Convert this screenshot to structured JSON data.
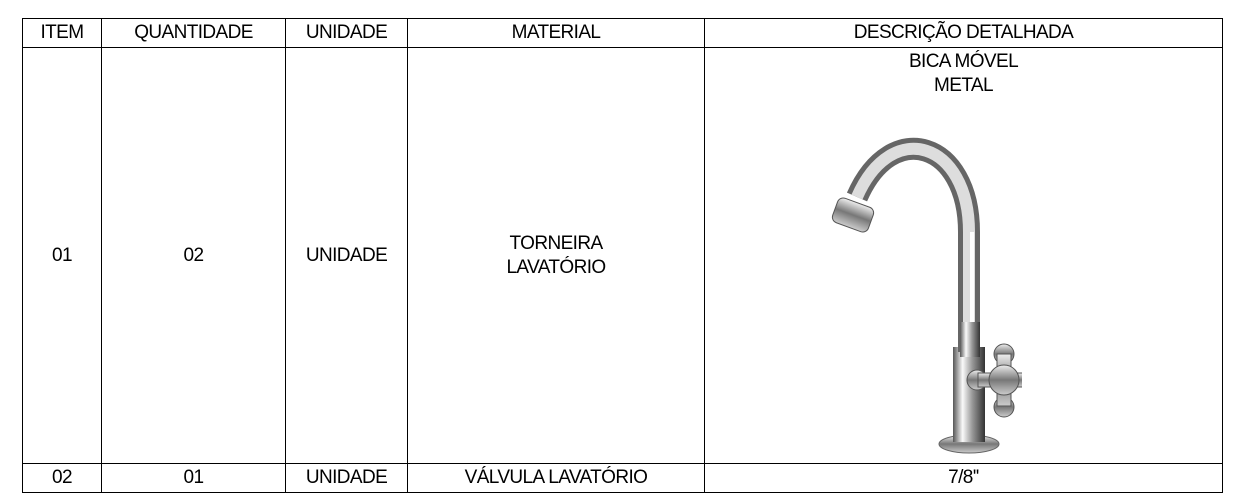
{
  "table": {
    "header": [
      "ITEM",
      "QUANTIDADE",
      "UNIDADE",
      "MATERIAL",
      "DESCRIÇÃO DETALHADA"
    ],
    "rows": [
      [
        [
          "01"
        ],
        [
          "02"
        ],
        [
          "UNIDADE"
        ],
        [
          "TORNEIRA",
          "LAVATÓRIO"
        ],
        [
          "BICA MÓVEL",
          "METAL"
        ]
      ],
      [
        [
          "02"
        ],
        [
          "01"
        ],
        [
          "UNIDADE"
        ],
        [
          "VÁLVULA LAVATÓRIO"
        ],
        [
          "7/8''"
        ]
      ]
    ]
  }
}
